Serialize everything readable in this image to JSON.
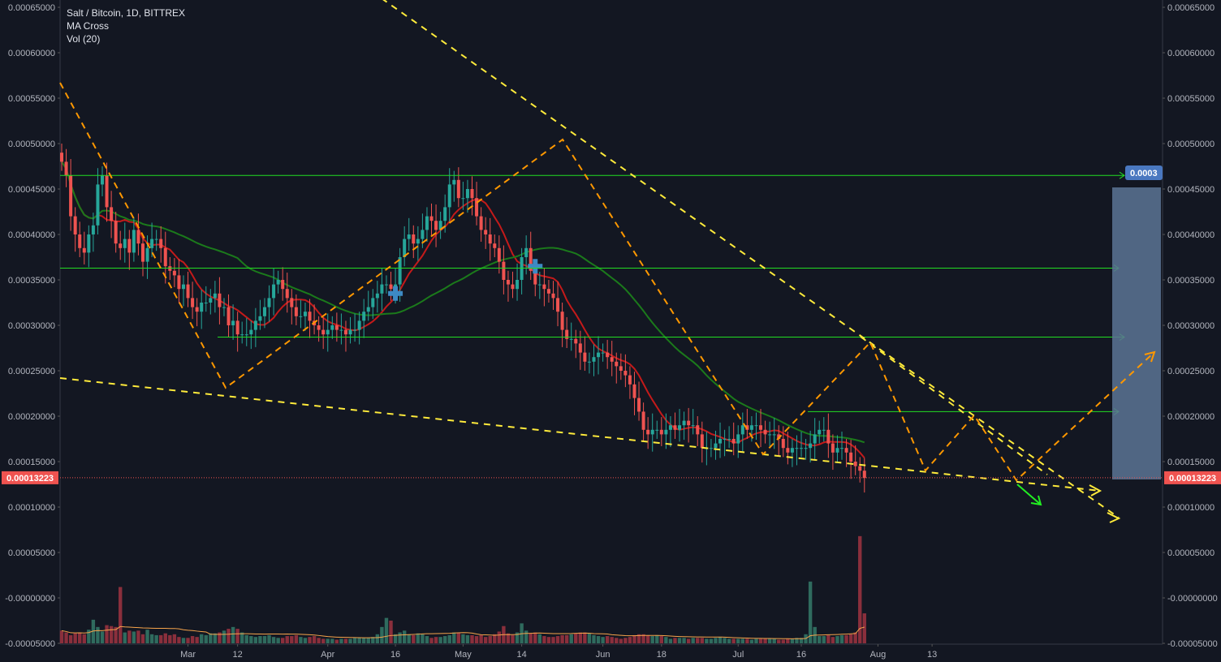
{
  "legend": {
    "symbol": "Salt / Bitcoin, 1D, BITTREX",
    "indicator_1": "MA Cross",
    "indicator_2": "Vol (20)"
  },
  "axis": {
    "price_labels": [
      "0.00065000",
      "0.00060000",
      "0.00055000",
      "0.00050000",
      "0.00045000",
      "0.00040000",
      "0.00035000",
      "0.00030000",
      "0.00025000",
      "0.00020000",
      "0.00015000",
      "0.00010000",
      "0.00005000",
      "-0.00000000",
      "-0.00005000"
    ],
    "price_values": [
      0.00065,
      0.0006,
      0.00055,
      0.0005,
      0.00045,
      0.0004,
      0.00035,
      0.0003,
      0.00025,
      0.0002,
      0.00015,
      0.0001,
      5e-05,
      0,
      -5e-05
    ],
    "date_labels": [
      "Mar",
      "12",
      "Apr",
      "16",
      "May",
      "14",
      "Jun",
      "18",
      "Jul",
      "16",
      "Aug",
      "13"
    ],
    "date_day_index": [
      28,
      39,
      59,
      74,
      89,
      102,
      120,
      133,
      150,
      164,
      181,
      193
    ]
  },
  "last_price_tag": "0.00013223",
  "target_tag": "0.0003",
  "colors": {
    "background": "#131722",
    "up": "#26a69a",
    "down": "#ef5350",
    "ma_fast": "#c41a1a",
    "ma_slow": "#1b7a1b",
    "level_line": "#22dd22",
    "trend_yellow": "#ffeb3b",
    "trend_orange": "#ff9800",
    "target_box": "#5c7494"
  },
  "chart_data": {
    "type": "candlestick",
    "title": "Salt / Bitcoin, 1D, BITTREX",
    "interval": "1D",
    "x_start": "2018-02-01",
    "y_range": [
      -5e-05,
      0.00065
    ],
    "close": [
      0.00048,
      0.000465,
      0.00042,
      0.0004,
      0.000385,
      0.00038,
      0.0004,
      0.00041,
      0.000455,
      0.000465,
      0.00043,
      0.000415,
      0.00039,
      0.000385,
      0.000395,
      0.00038,
      0.000405,
      0.00039,
      0.00037,
      0.000385,
      0.000395,
      0.000395,
      0.000385,
      0.000365,
      0.00036,
      0.000355,
      0.00034,
      0.000345,
      0.00033,
      0.00032,
      0.000315,
      0.000325,
      0.000325,
      0.00033,
      0.000335,
      0.00032,
      0.00032,
      0.0003,
      0.000305,
      0.00029,
      0.00029,
      0.00029,
      0.000295,
      0.000305,
      0.00031,
      0.00032,
      0.00033,
      0.000345,
      0.00035,
      0.00034,
      0.00033,
      0.00032,
      0.00031,
      0.00031,
      0.000315,
      0.000305,
      0.0003,
      0.000295,
      0.00029,
      0.000295,
      0.0003,
      0.000295,
      0.000295,
      0.00029,
      0.000295,
      0.000295,
      0.000305,
      0.000315,
      0.00032,
      0.00033,
      0.000335,
      0.000345,
      0.000345,
      0.00034,
      0.000345,
      0.000375,
      0.000395,
      0.0004,
      0.00039,
      0.000395,
      0.000405,
      0.00042,
      0.000415,
      0.000405,
      0.000415,
      0.00043,
      0.000455,
      0.00046,
      0.00044,
      0.00044,
      0.00045,
      0.00044,
      0.00042,
      0.000405,
      0.0004,
      0.00039,
      0.000385,
      0.00037,
      0.00035,
      0.000345,
      0.00034,
      0.00035,
      0.000375,
      0.000385,
      0.00036,
      0.000345,
      0.000345,
      0.00034,
      0.000335,
      0.00033,
      0.000315,
      0.000295,
      0.000285,
      0.000285,
      0.00028,
      0.00027,
      0.00026,
      0.00026,
      0.000265,
      0.00027,
      0.00027,
      0.000265,
      0.00026,
      0.000255,
      0.00025,
      0.000245,
      0.000235,
      0.00022,
      0.000205,
      0.000185,
      0.00018,
      0.000185,
      0.000185,
      0.00018,
      0.000185,
      0.00019,
      0.000185,
      0.00019,
      0.000195,
      0.00019,
      0.00019,
      0.00018,
      0.000165,
      0.000165,
      0.000165,
      0.00017,
      0.000175,
      0.000175,
      0.000175,
      0.00017,
      0.00018,
      0.00019,
      0.000185,
      0.00019,
      0.00019,
      0.000185,
      0.00018,
      0.00018,
      0.00018,
      0.000175,
      0.000165,
      0.00016,
      0.000165,
      0.000165,
      0.000165,
      0.000165,
      0.00017,
      0.00018,
      0.000185,
      0.000185,
      0.00017,
      0.00016,
      0.000165,
      0.000165,
      0.00016,
      0.00015,
      0.000145,
      0.00014,
      0.000132
    ],
    "volume": [
      1.4e-05,
      1.2e-05,
      9e-06,
      1.1e-05,
      1.2e-05,
      1e-05,
      1.5e-05,
      2.6e-05,
      1.8e-05,
      1.3e-05,
      2e-05,
      1.9e-05,
      1.8e-05,
      6.2e-05,
      1.2e-05,
      1.4e-05,
      1.3e-05,
      1.4e-05,
      1e-05,
      1.5e-05,
      1e-05,
      9e-06,
      9e-06,
      1.1e-05,
      9e-06,
      1e-05,
      7e-06,
      6e-06,
      6e-06,
      8e-06,
      7e-06,
      1e-05,
      9e-06,
      1.1e-05,
      1.1e-05,
      1.2e-05,
      1.4e-05,
      1.6e-05,
      1.8e-05,
      1.6e-05,
      1.2e-05,
      9e-06,
      8e-06,
      7e-06,
      8e-06,
      8e-06,
      9e-06,
      7e-06,
      6e-06,
      6e-06,
      8e-06,
      8e-06,
      9e-06,
      7e-06,
      6e-06,
      7e-06,
      8e-06,
      6e-06,
      5e-06,
      5e-06,
      5e-06,
      4e-06,
      5e-06,
      5e-06,
      5e-06,
      6e-06,
      6e-06,
      6e-06,
      6e-06,
      7e-06,
      1e-05,
      1.8e-05,
      2.8e-05,
      2.5e-05,
      1e-05,
      1.2e-05,
      1.4e-05,
      1e-05,
      9e-06,
      1.1e-05,
      1e-05,
      8e-06,
      6e-06,
      7e-06,
      7e-06,
      8e-06,
      9e-06,
      1.2e-05,
      1.2e-05,
      1e-05,
      9e-06,
      9e-06,
      8e-06,
      9e-06,
      7e-06,
      8e-06,
      1e-05,
      1.3e-05,
      1.9e-05,
      1.1e-05,
      9e-06,
      1.2e-05,
      2.2e-05,
      1.4e-05,
      1.1e-05,
      1.2e-05,
      1e-05,
      8e-06,
      7e-06,
      7e-06,
      8e-06,
      9e-06,
      9e-06,
      1e-05,
      1.1e-05,
      1.2e-05,
      1.2e-05,
      1.1e-05,
      9e-06,
      8e-06,
      7e-06,
      8e-06,
      7e-06,
      6e-06,
      5e-06,
      6e-06,
      7e-06,
      9e-06,
      1e-05,
      1e-05,
      9e-06,
      8e-06,
      9e-06,
      8e-06,
      7e-06,
      5e-06,
      6e-06,
      6e-06,
      6e-06,
      5e-06,
      6e-06,
      6e-06,
      6e-06,
      5e-06,
      5e-06,
      6e-06,
      7e-06,
      6e-06,
      5e-06,
      5e-06,
      5e-06,
      5e-06,
      5e-06,
      4e-06,
      5e-06,
      5e-06,
      5e-06,
      5e-06,
      5e-06,
      4e-06,
      4e-06,
      5e-06,
      5e-06,
      6e-06,
      6e-06,
      1e-05,
      6.8e-05,
      1.8e-05,
      8e-06,
      8e-06,
      9e-06,
      7e-06,
      8e-06,
      9e-06,
      9e-06,
      1e-05,
      1.2e-05,
      0.000118,
      3.3e-05
    ],
    "ma_fast_label": "MA Cross (red)",
    "ma_slow_label": "MA Cross (green)",
    "horizontal_levels": [
      0.000465,
      0.000363,
      0.000287,
      0.000205
    ],
    "cross_markers": [
      {
        "day": 74,
        "price": 0.000335
      },
      {
        "day": 105,
        "price": 0.000365
      }
    ],
    "last_price": 0.00013223
  }
}
